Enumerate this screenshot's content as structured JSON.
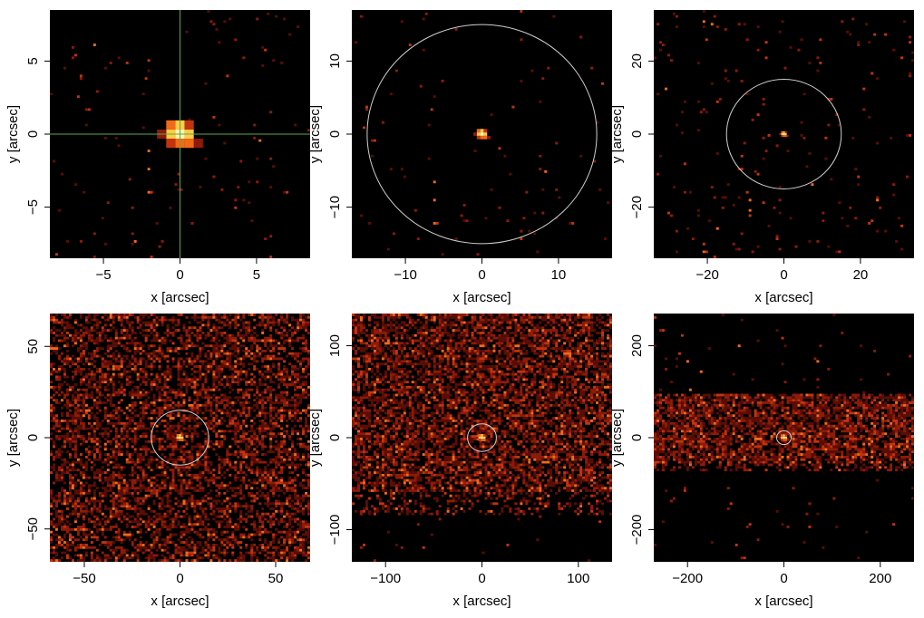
{
  "colors": {
    "background": "#000000",
    "noise_dark": "#5a0d05",
    "noise_mid": "#8e1a08",
    "noise_bright": "#c2330e",
    "noise_hot": "#f06a18",
    "source_core": "#fff4b0",
    "source_hot": "#ffcc44",
    "crosshair": "#5fa84b",
    "circle": "#cfcfcf"
  },
  "chart_data": [
    {
      "type": "heatmap",
      "panel": "top-left",
      "xlabel": "x [arcsec]",
      "ylabel": "y [arcsec]",
      "xlim": [
        -8.5,
        8.5
      ],
      "ylim": [
        -8.5,
        8.5
      ],
      "xticks": [
        -5,
        0,
        5
      ],
      "xtick_labels": [
        "−5",
        "0",
        "5"
      ],
      "yticks": [
        -5,
        0,
        5
      ],
      "ytick_labels": [
        "−5",
        "0",
        "5"
      ],
      "source": {
        "x": 0,
        "y": 0,
        "size": 1.2
      },
      "overlay": {
        "kind": "crosshair",
        "x": 0,
        "y": 0
      },
      "background_noise": {
        "density": 0.01,
        "band": null
      }
    },
    {
      "type": "heatmap",
      "panel": "top-middle",
      "xlabel": "x [arcsec]",
      "ylabel": "y [arcsec]",
      "xlim": [
        -17,
        17
      ],
      "ylim": [
        -17,
        17
      ],
      "xticks": [
        -10,
        0,
        10
      ],
      "xtick_labels": [
        "−10",
        "0",
        "10"
      ],
      "yticks": [
        -10,
        0,
        10
      ],
      "ytick_labels": [
        "−10",
        "0",
        "10"
      ],
      "source": {
        "x": 0,
        "y": 0,
        "size": 0.9
      },
      "overlay": {
        "kind": "circle",
        "x": 0,
        "y": 0,
        "r": 15
      },
      "background_noise": {
        "density": 0.01,
        "band": null
      }
    },
    {
      "type": "heatmap",
      "panel": "top-right",
      "xlabel": "x [arcsec]",
      "ylabel": "y [arcsec]",
      "xlim": [
        -34,
        34
      ],
      "ylim": [
        -34,
        34
      ],
      "xticks": [
        -20,
        0,
        20
      ],
      "xtick_labels": [
        "−20",
        "0",
        "20"
      ],
      "yticks": [
        -20,
        0,
        20
      ],
      "ytick_labels": [
        "−20",
        "0",
        "20"
      ],
      "source": {
        "x": 0,
        "y": 0,
        "size": 1.0
      },
      "overlay": {
        "kind": "circle",
        "x": 0,
        "y": 0,
        "r": 15
      },
      "background_noise": {
        "density": 0.02,
        "band": null
      }
    },
    {
      "type": "heatmap",
      "panel": "bottom-left",
      "xlabel": "x [arcsec]",
      "ylabel": "y [arcsec]",
      "xlim": [
        -68,
        68
      ],
      "ylim": [
        -68,
        68
      ],
      "xticks": [
        -50,
        0,
        50
      ],
      "xtick_labels": [
        "−50",
        "0",
        "50"
      ],
      "yticks": [
        -50,
        0,
        50
      ],
      "ytick_labels": [
        "−50",
        "0",
        "50"
      ],
      "source": {
        "x": 0,
        "y": 0,
        "size": 2.5
      },
      "overlay": {
        "kind": "circle",
        "x": 0,
        "y": 0,
        "r": 15
      },
      "background_noise": {
        "density": 0.5,
        "band": null
      }
    },
    {
      "type": "heatmap",
      "panel": "bottom-middle",
      "xlabel": "x [arcsec]",
      "ylabel": "y [arcsec]",
      "xlim": [
        -135,
        135
      ],
      "ylim": [
        -135,
        135
      ],
      "xticks": [
        -100,
        0,
        100
      ],
      "xtick_labels": [
        "−100",
        "0",
        "100"
      ],
      "yticks": [
        -100,
        0,
        100
      ],
      "ytick_labels": [
        "−100",
        "0",
        "100"
      ],
      "source": {
        "x": 0,
        "y": 0,
        "size": 5
      },
      "overlay": {
        "kind": "circle",
        "x": 0,
        "y": 0,
        "r": 15
      },
      "background_noise": {
        "density": 0.6,
        "band": [
          -85,
          135
        ]
      }
    },
    {
      "type": "heatmap",
      "panel": "bottom-right",
      "xlabel": "x [arcsec]",
      "ylabel": "y [arcsec]",
      "xlim": [
        -270,
        270
      ],
      "ylim": [
        -270,
        270
      ],
      "xticks": [
        -200,
        0,
        200
      ],
      "xtick_labels": [
        "−200",
        "0",
        "200"
      ],
      "yticks": [
        -200,
        0,
        200
      ],
      "ytick_labels": [
        "−200",
        "0",
        "200"
      ],
      "source": {
        "x": 0,
        "y": 0,
        "size": 9
      },
      "overlay": {
        "kind": "circle",
        "x": 0,
        "y": 0,
        "r": 15
      },
      "background_noise": {
        "density": 0.7,
        "band": [
          -75,
          95
        ]
      }
    }
  ]
}
